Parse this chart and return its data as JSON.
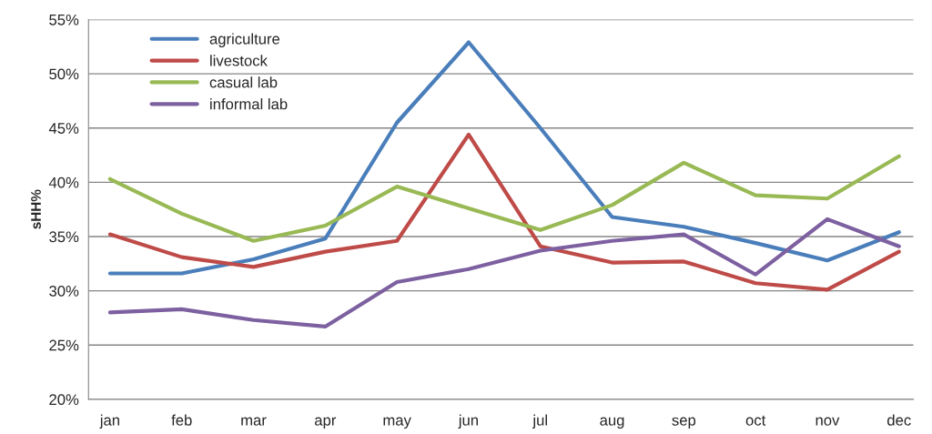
{
  "chart_data": {
    "type": "line",
    "ylabel": "sHH%",
    "categories": [
      "jan",
      "feb",
      "mar",
      "apr",
      "may",
      "jun",
      "jul",
      "aug",
      "sep",
      "oct",
      "nov",
      "dec"
    ],
    "series": [
      {
        "name": "agriculture",
        "color": "#4a7ebb",
        "values": [
          31.6,
          31.6,
          32.9,
          34.8,
          45.5,
          52.9,
          45.0,
          36.8,
          35.9,
          34.4,
          32.8,
          35.4
        ]
      },
      {
        "name": "livestock",
        "color": "#be4b48",
        "values": [
          35.2,
          33.1,
          32.2,
          33.6,
          34.6,
          44.4,
          34.1,
          32.6,
          32.7,
          30.7,
          30.1,
          33.6
        ]
      },
      {
        "name": "casual lab",
        "color": "#98b954",
        "values": [
          40.3,
          37.1,
          34.6,
          36.0,
          39.6,
          37.6,
          35.6,
          37.9,
          41.8,
          38.8,
          38.5,
          42.4
        ]
      },
      {
        "name": "informal lab",
        "color": "#7d60a0",
        "values": [
          28.0,
          28.3,
          27.3,
          26.7,
          30.8,
          32.0,
          33.7,
          34.6,
          35.2,
          31.5,
          36.6,
          34.1
        ]
      }
    ],
    "ylim": [
      20,
      55
    ],
    "yticks": [
      {
        "value": 20,
        "label": "20%"
      },
      {
        "value": 25,
        "label": "25%"
      },
      {
        "value": 30,
        "label": "30%"
      },
      {
        "value": 35,
        "label": "35%"
      },
      {
        "value": 40,
        "label": "40%"
      },
      {
        "value": 45,
        "label": "45%"
      },
      {
        "value": 50,
        "label": "50%"
      },
      {
        "value": 55,
        "label": "55%"
      }
    ],
    "grid": "y",
    "legend": "top left",
    "marker": "none",
    "line_style": "solid"
  }
}
